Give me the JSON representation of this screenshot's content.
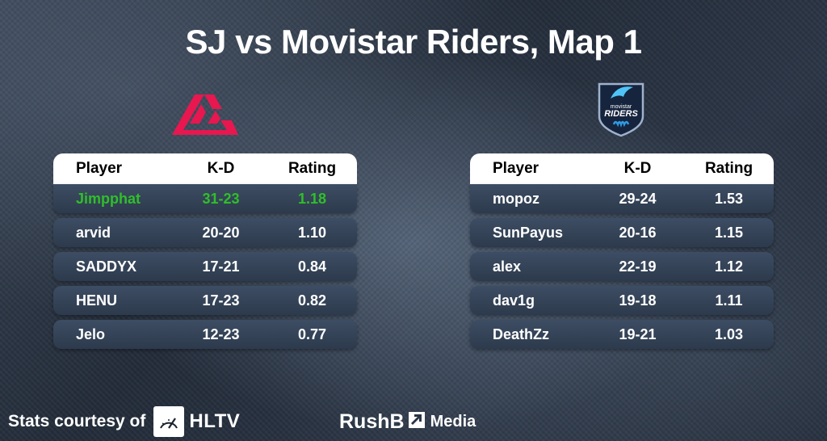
{
  "title": "SJ vs Movistar Riders, Map 1",
  "headers": {
    "player": "Player",
    "kd": "K-D",
    "rating": "Rating"
  },
  "teams": [
    {
      "logo": "sj-logo",
      "logo_color": "#e8174f",
      "players": [
        {
          "name": "Jimpphat",
          "kd": "31-23",
          "rating": "1.18",
          "highlight": true
        },
        {
          "name": "arvid",
          "kd": "20-20",
          "rating": "1.10"
        },
        {
          "name": "SADDYX",
          "kd": "17-21",
          "rating": "0.84"
        },
        {
          "name": "HENU",
          "kd": "17-23",
          "rating": "0.82"
        },
        {
          "name": "Jelo",
          "kd": "12-23",
          "rating": "0.77"
        }
      ]
    },
    {
      "logo": "movistar-riders-logo",
      "logo_text_top": "movistar",
      "logo_text_main": "RIDERS",
      "logo_color": "#1f3c6e",
      "players": [
        {
          "name": "mopoz",
          "kd": "29-24",
          "rating": "1.53"
        },
        {
          "name": "SunPayus",
          "kd": "20-16",
          "rating": "1.15"
        },
        {
          "name": "alex",
          "kd": "22-19",
          "rating": "1.12"
        },
        {
          "name": "dav1g",
          "kd": "19-18",
          "rating": "1.11"
        },
        {
          "name": "DeathZz",
          "kd": "19-21",
          "rating": "1.03"
        }
      ]
    }
  ],
  "highlight_color": "#2fbf2a",
  "footer": {
    "credit_text": "Stats courtesy of",
    "credit_brand": "HLTV",
    "credit_icon": "hltv-speedometer-icon",
    "brand_main": "RushB",
    "brand_sub": "Media",
    "brand_icon": "arrow-up-right-icon"
  }
}
